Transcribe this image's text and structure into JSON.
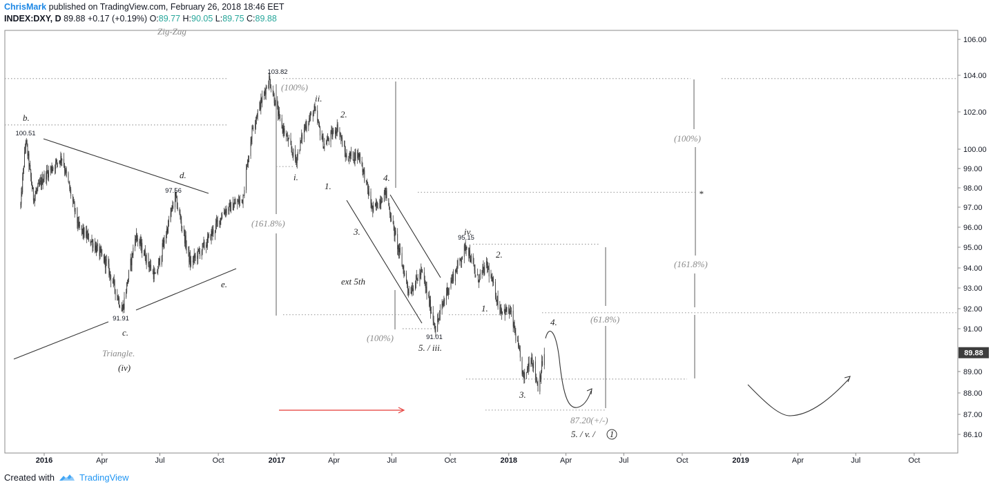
{
  "header": {
    "author": "ChrisMark",
    "published": " published on TradingView.com, February 26, 2018 18:46 EET",
    "symbol": "INDEX:DXY, D",
    "last": "89.88",
    "change": "+0.17 (+0.19%)",
    "o_label": "O:",
    "o_value": "89.77",
    "h_label": "H:",
    "h_value": "90.05",
    "l_label": "L:",
    "l_value": "89.75",
    "c_label": "C:",
    "c_value": "89.88"
  },
  "footer": {
    "created_with": "Created with",
    "brand": "TradingView"
  },
  "chart_data": {
    "type": "candlestick",
    "symbol": "INDEX:DXY",
    "interval": "D",
    "last_price": 89.88,
    "y_ticks": [
      106.0,
      104.0,
      102.0,
      100.0,
      99.0,
      98.0,
      97.0,
      96.0,
      95.0,
      94.0,
      93.0,
      92.0,
      91.0,
      89.0,
      88.0,
      87.0,
      86.1
    ],
    "y_tick_labels": [
      "106.00",
      "104.00",
      "102.00",
      "100.00",
      "99.00",
      "98.00",
      "97.00",
      "96.00",
      "95.00",
      "94.00",
      "93.00",
      "92.00",
      "91.00",
      "89.00",
      "88.00",
      "87.00",
      "86.10"
    ],
    "x_ticks": [
      {
        "label": "2016",
        "year": true
      },
      {
        "label": "Apr"
      },
      {
        "label": "Jul"
      },
      {
        "label": "Oct"
      },
      {
        "label": "2017",
        "year": true
      },
      {
        "label": "Apr"
      },
      {
        "label": "Jul"
      },
      {
        "label": "Oct"
      },
      {
        "label": "2018",
        "year": true
      },
      {
        "label": "Apr"
      },
      {
        "label": "Jul"
      },
      {
        "label": "Oct"
      },
      {
        "label": "2019",
        "year": true
      },
      {
        "label": "Apr"
      },
      {
        "label": "Jul"
      },
      {
        "label": "Oct"
      }
    ],
    "price_path": [
      [
        "2015-11-25",
        97.1
      ],
      [
        "2015-12-03",
        100.51
      ],
      [
        "2015-12-15",
        97.5
      ],
      [
        "2016-01-01",
        98.6
      ],
      [
        "2016-01-29",
        99.6
      ],
      [
        "2016-02-24",
        96.0
      ],
      [
        "2016-03-18",
        95.2
      ],
      [
        "2016-04-08",
        94.2
      ],
      [
        "2016-05-03",
        91.91
      ],
      [
        "2016-05-24",
        95.6
      ],
      [
        "2016-06-24",
        93.5
      ],
      [
        "2016-07-25",
        97.56
      ],
      [
        "2016-08-18",
        94.2
      ],
      [
        "2016-09-12",
        95.2
      ],
      [
        "2016-10-10",
        96.8
      ],
      [
        "2016-11-08",
        97.4
      ],
      [
        "2016-11-24",
        101.2
      ],
      [
        "2016-12-20",
        103.82
      ],
      [
        "2017-01-06",
        101.5
      ],
      [
        "2017-01-31",
        99.4
      ],
      [
        "2017-02-14",
        101.2
      ],
      [
        "2017-03-01",
        102.1
      ],
      [
        "2017-03-16",
        100.2
      ],
      [
        "2017-04-07",
        101.2
      ],
      [
        "2017-04-20",
        99.6
      ],
      [
        "2017-05-11",
        99.7
      ],
      [
        "2017-06-01",
        96.8
      ],
      [
        "2017-06-21",
        97.8
      ],
      [
        "2017-07-06",
        95.6
      ],
      [
        "2017-07-28",
        92.8
      ],
      [
        "2017-08-17",
        93.8
      ],
      [
        "2017-09-08",
        91.01
      ],
      [
        "2017-09-25",
        92.8
      ],
      [
        "2017-10-27",
        95.15
      ],
      [
        "2017-11-12",
        93.4
      ],
      [
        "2017-11-28",
        94.1
      ],
      [
        "2017-12-18",
        92.0
      ],
      [
        "2018-01-04",
        91.8
      ],
      [
        "2018-01-15",
        90.2
      ],
      [
        "2018-01-25",
        88.6
      ],
      [
        "2018-02-05",
        89.8
      ],
      [
        "2018-02-16",
        88.3
      ],
      [
        "2018-02-26",
        89.88
      ]
    ],
    "price_labels": [
      {
        "date": "2015-12-03",
        "value": "100.51"
      },
      {
        "date": "2016-05-03",
        "value": "91.91"
      },
      {
        "date": "2016-07-25",
        "value": "97.56"
      },
      {
        "date": "2016-12-20",
        "value": "103.82"
      },
      {
        "date": "2017-10-27",
        "value": "95.15"
      },
      {
        "date": "2017-09-08",
        "value": "91.01"
      }
    ],
    "annotations": [
      {
        "text": "Zig-Zag",
        "style": "gray"
      },
      {
        "text": "b.",
        "style": "dark"
      },
      {
        "text": "d.",
        "style": "dark"
      },
      {
        "text": "c.",
        "style": "dark"
      },
      {
        "text": "e.",
        "style": "dark"
      },
      {
        "text": "Triangle.",
        "style": "gray"
      },
      {
        "text": "(iv)",
        "style": "dark"
      },
      {
        "text": "(100%)",
        "style": "gray"
      },
      {
        "text": "ii.",
        "style": "dark"
      },
      {
        "text": "2.",
        "style": "dark"
      },
      {
        "text": "i.",
        "style": "dark"
      },
      {
        "text": "1.",
        "style": "dark"
      },
      {
        "text": "(161.8%)",
        "style": "gray"
      },
      {
        "text": "4.",
        "style": "dark"
      },
      {
        "text": "3.",
        "style": "dark"
      },
      {
        "text": "ext 5th",
        "style": "dark"
      },
      {
        "text": "(100%)",
        "style": "gray"
      },
      {
        "text": "5. / iii.",
        "style": "dark"
      },
      {
        "text": "iv.",
        "style": "dark"
      },
      {
        "text": "2.",
        "style": "dark"
      },
      {
        "text": "1.",
        "style": "dark"
      },
      {
        "text": "4.",
        "style": "dark"
      },
      {
        "text": "3.",
        "style": "dark"
      },
      {
        "text": "(61.8%)",
        "style": "gray"
      },
      {
        "text": "87.20(+/-)",
        "style": "gray"
      },
      {
        "text": "5. / v. / ",
        "style": "dark"
      },
      {
        "text": "1",
        "style": "circled"
      },
      {
        "text": "(100%)",
        "style": "gray"
      },
      {
        "text": "*",
        "style": "red"
      },
      {
        "text": "(161.8%)",
        "style": "gray"
      }
    ],
    "horizontal_levels": [
      103.82,
      101.3,
      99.1,
      97.77,
      95.15,
      91.8,
      91.7,
      91.0,
      88.65,
      87.2
    ],
    "colors": {
      "candle": "#3b3b3b",
      "guide_line": "#9e9e9e",
      "arrow_red": "#e53935",
      "price_badge_bg": "#3d3d3d",
      "price_badge_text": "#ffffff",
      "axis": "#8a8a8a",
      "change_up": "#26a69a",
      "brand_blue": "#2196f3"
    },
    "grid": false
  }
}
